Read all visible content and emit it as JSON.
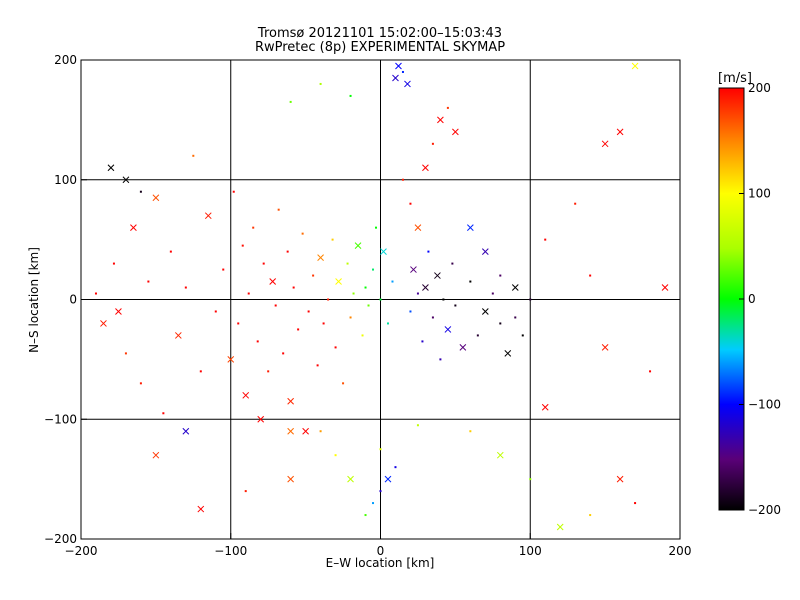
{
  "chart_data": {
    "type": "scatter",
    "title": "Tromsø 20121101 15:02:00–15:03:43",
    "subtitle": "RwPretec (8p) EXPERIMENTAL SKYMAP",
    "xlabel": "E–W location [km]",
    "ylabel": "N–S location [km]",
    "xlim": [
      -200,
      200
    ],
    "ylim": [
      -200,
      200
    ],
    "xticks": [
      -200,
      -100,
      0,
      100,
      200
    ],
    "yticks": [
      -200,
      -100,
      0,
      100,
      200
    ],
    "xtick_labels": [
      "−200",
      "−100",
      "0",
      "100",
      "200"
    ],
    "ytick_labels": [
      "−200",
      "−100",
      "0",
      "100",
      "200"
    ],
    "grid": true,
    "marker_types": [
      "dot",
      "cross"
    ],
    "colorbar": {
      "label": "[m/s]",
      "min": -200,
      "max": 200,
      "ticks": [
        200,
        100,
        0,
        -100,
        -200
      ],
      "tick_labels": [
        "200",
        "100",
        "0",
        "−100",
        "−200"
      ],
      "placement": "right",
      "colormap": "rainbow: black(−200) → purple → blue(−100) → cyan → green(0) → yellow(100) → orange → red(200)"
    },
    "points": [
      [
        -190,
        5,
        200,
        "dot"
      ],
      [
        -185,
        -20,
        190,
        "cross"
      ],
      [
        -178,
        30,
        200,
        "dot"
      ],
      [
        -170,
        -45,
        180,
        "dot"
      ],
      [
        -165,
        60,
        200,
        "cross"
      ],
      [
        -160,
        -70,
        190,
        "dot"
      ],
      [
        -155,
        15,
        200,
        "dot"
      ],
      [
        -150,
        85,
        170,
        "cross"
      ],
      [
        -145,
        -95,
        200,
        "dot"
      ],
      [
        -140,
        40,
        200,
        "dot"
      ],
      [
        -135,
        -30,
        185,
        "cross"
      ],
      [
        -130,
        10,
        200,
        "dot"
      ],
      [
        -125,
        120,
        160,
        "dot"
      ],
      [
        -120,
        -60,
        200,
        "dot"
      ],
      [
        -115,
        70,
        190,
        "cross"
      ],
      [
        -110,
        -10,
        200,
        "dot"
      ],
      [
        -105,
        25,
        200,
        "dot"
      ],
      [
        -100,
        -50,
        175,
        "cross"
      ],
      [
        -98,
        90,
        200,
        "dot"
      ],
      [
        -95,
        -20,
        200,
        "dot"
      ],
      [
        -92,
        45,
        195,
        "dot"
      ],
      [
        -90,
        -80,
        200,
        "cross"
      ],
      [
        -88,
        5,
        200,
        "dot"
      ],
      [
        -85,
        60,
        180,
        "dot"
      ],
      [
        -82,
        -35,
        200,
        "dot"
      ],
      [
        -80,
        -100,
        200,
        "cross"
      ],
      [
        -78,
        30,
        200,
        "dot"
      ],
      [
        -75,
        -60,
        190,
        "dot"
      ],
      [
        -72,
        15,
        200,
        "cross"
      ],
      [
        -70,
        -5,
        200,
        "dot"
      ],
      [
        -68,
        75,
        170,
        "dot"
      ],
      [
        -65,
        -45,
        200,
        "dot"
      ],
      [
        -62,
        40,
        200,
        "dot"
      ],
      [
        -60,
        -85,
        185,
        "cross"
      ],
      [
        -58,
        10,
        200,
        "dot"
      ],
      [
        -55,
        -25,
        200,
        "dot"
      ],
      [
        -52,
        55,
        160,
        "dot"
      ],
      [
        -50,
        -110,
        200,
        "cross"
      ],
      [
        -48,
        -10,
        200,
        "dot"
      ],
      [
        -45,
        20,
        180,
        "dot"
      ],
      [
        -42,
        -55,
        200,
        "dot"
      ],
      [
        -40,
        35,
        150,
        "cross"
      ],
      [
        -38,
        -20,
        200,
        "dot"
      ],
      [
        -35,
        0,
        190,
        "dot"
      ],
      [
        -32,
        50,
        120,
        "dot"
      ],
      [
        -30,
        -40,
        200,
        "dot"
      ],
      [
        -28,
        15,
        100,
        "cross"
      ],
      [
        -25,
        -70,
        170,
        "dot"
      ],
      [
        -22,
        30,
        60,
        "dot"
      ],
      [
        -20,
        -15,
        150,
        "dot"
      ],
      [
        -18,
        5,
        40,
        "dot"
      ],
      [
        -15,
        45,
        20,
        "cross"
      ],
      [
        -12,
        -30,
        90,
        "dot"
      ],
      [
        -10,
        10,
        0,
        "dot"
      ],
      [
        -8,
        -5,
        30,
        "dot"
      ],
      [
        -5,
        25,
        -20,
        "dot"
      ],
      [
        -3,
        60,
        0,
        "dot"
      ],
      [
        0,
        0,
        -10,
        "dot"
      ],
      [
        2,
        40,
        -40,
        "cross"
      ],
      [
        5,
        -20,
        -30,
        "dot"
      ],
      [
        8,
        15,
        -60,
        "dot"
      ],
      [
        10,
        185,
        -120,
        "cross"
      ],
      [
        12,
        195,
        -100,
        "cross"
      ],
      [
        15,
        190,
        -90,
        "dot"
      ],
      [
        18,
        180,
        -110,
        "cross"
      ],
      [
        20,
        -10,
        -80,
        "dot"
      ],
      [
        22,
        25,
        -150,
        "cross"
      ],
      [
        25,
        5,
        -140,
        "dot"
      ],
      [
        28,
        -35,
        -120,
        "dot"
      ],
      [
        30,
        10,
        -180,
        "cross"
      ],
      [
        32,
        40,
        -100,
        "dot"
      ],
      [
        35,
        -15,
        -160,
        "dot"
      ],
      [
        38,
        20,
        -190,
        "cross"
      ],
      [
        40,
        -50,
        -130,
        "dot"
      ],
      [
        42,
        0,
        -200,
        "dot"
      ],
      [
        45,
        -25,
        -110,
        "cross"
      ],
      [
        48,
        30,
        -170,
        "dot"
      ],
      [
        50,
        -5,
        -190,
        "dot"
      ],
      [
        55,
        -40,
        -150,
        "cross"
      ],
      [
        60,
        15,
        -200,
        "dot"
      ],
      [
        65,
        -30,
        -180,
        "dot"
      ],
      [
        70,
        -10,
        -200,
        "cross"
      ],
      [
        75,
        5,
        -160,
        "dot"
      ],
      [
        80,
        -20,
        -190,
        "dot"
      ],
      [
        85,
        -45,
        -200,
        "cross"
      ],
      [
        90,
        -15,
        -170,
        "dot"
      ],
      [
        95,
        -30,
        -200,
        "dot"
      ],
      [
        100,
        0,
        -180,
        "dot"
      ],
      [
        30,
        110,
        200,
        "cross"
      ],
      [
        35,
        130,
        190,
        "dot"
      ],
      [
        40,
        150,
        200,
        "cross"
      ],
      [
        45,
        160,
        180,
        "dot"
      ],
      [
        50,
        140,
        200,
        "cross"
      ],
      [
        20,
        80,
        200,
        "dot"
      ],
      [
        25,
        60,
        170,
        "cross"
      ],
      [
        15,
        100,
        190,
        "dot"
      ],
      [
        0,
        -160,
        -120,
        "dot"
      ],
      [
        5,
        -150,
        -90,
        "cross"
      ],
      [
        -5,
        -170,
        -60,
        "dot"
      ],
      [
        10,
        -140,
        -110,
        "dot"
      ],
      [
        -10,
        -180,
        20,
        "dot"
      ],
      [
        -20,
        -150,
        60,
        "cross"
      ],
      [
        -30,
        -130,
        100,
        "dot"
      ],
      [
        -40,
        -110,
        140,
        "dot"
      ],
      [
        120,
        -190,
        60,
        "cross"
      ],
      [
        140,
        -180,
        120,
        "dot"
      ],
      [
        160,
        -150,
        190,
        "cross"
      ],
      [
        170,
        -170,
        200,
        "dot"
      ],
      [
        150,
        130,
        200,
        "cross"
      ],
      [
        160,
        140,
        200,
        "cross"
      ],
      [
        130,
        80,
        190,
        "dot"
      ],
      [
        110,
        50,
        200,
        "dot"
      ],
      [
        -175,
        -10,
        200,
        "cross"
      ],
      [
        -150,
        -130,
        180,
        "cross"
      ],
      [
        -120,
        -175,
        200,
        "cross"
      ],
      [
        -90,
        -160,
        190,
        "dot"
      ],
      [
        -60,
        -150,
        170,
        "cross"
      ],
      [
        -60,
        165,
        30,
        "dot"
      ],
      [
        -40,
        180,
        50,
        "dot"
      ],
      [
        -20,
        170,
        0,
        "dot"
      ],
      [
        60,
        60,
        -90,
        "cross"
      ],
      [
        70,
        40,
        -130,
        "cross"
      ],
      [
        80,
        20,
        -160,
        "dot"
      ],
      [
        90,
        10,
        -200,
        "cross"
      ],
      [
        -180,
        110,
        -200,
        "cross"
      ],
      [
        -170,
        100,
        -200,
        "cross"
      ],
      [
        -160,
        90,
        -190,
        "dot"
      ],
      [
        170,
        195,
        100,
        "cross"
      ],
      [
        -130,
        -110,
        -120,
        "cross"
      ],
      [
        -60,
        -110,
        160,
        "cross"
      ],
      [
        0,
        -125,
        80,
        "dot"
      ],
      [
        25,
        -105,
        60,
        "dot"
      ],
      [
        140,
        20,
        200,
        "dot"
      ],
      [
        150,
        -40,
        190,
        "cross"
      ],
      [
        180,
        -60,
        200,
        "dot"
      ],
      [
        190,
        10,
        200,
        "cross"
      ],
      [
        60,
        -110,
        120,
        "dot"
      ],
      [
        80,
        -130,
        60,
        "cross"
      ],
      [
        100,
        -150,
        40,
        "dot"
      ],
      [
        110,
        -90,
        200,
        "cross"
      ]
    ]
  }
}
